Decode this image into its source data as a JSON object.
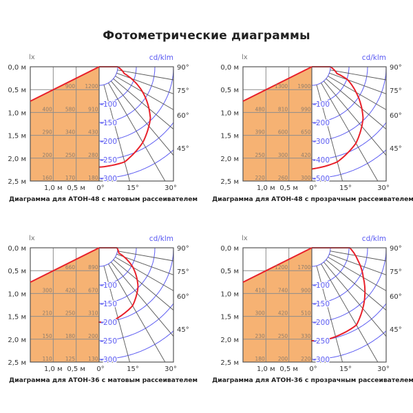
{
  "title": "Фотометрические диаграммы",
  "colors": {
    "fill": "#f6b273",
    "curve": "#e8202a",
    "rings": "#5b5bf2",
    "grid": "#8c8c8c",
    "frame": "#555555",
    "table_text": "#8f7d6b"
  },
  "chart_data": [
    {
      "type": "polar-photometric-with-illuminance-table",
      "caption": "Диаграмма для АТОН-48 с матовым рассеивателем",
      "unit_left": "lx",
      "unit_right": "cd/klm",
      "y_ticks": [
        "0,0 м",
        "0,5 м",
        "1,0 м",
        "1,5 м",
        "2,0 м",
        "2,5 м"
      ],
      "x_ticks_left": [
        "1,0 м",
        "0,5 м"
      ],
      "angle_ticks_bottom": [
        "0°",
        "15°",
        "30°"
      ],
      "angle_ticks_right": [
        "90°",
        "75°",
        "60°",
        "45°"
      ],
      "ring_labels": [
        "100",
        "150",
        "200",
        "250",
        "300"
      ],
      "illuminance_table": [
        [
          "",
          "900",
          "1200"
        ],
        [
          "400",
          "580",
          "910"
        ],
        [
          "290",
          "340",
          "430"
        ],
        [
          "200",
          "250",
          "280"
        ],
        [
          "160",
          "170",
          "180"
        ]
      ],
      "curve": [
        [
          0,
          270
        ],
        [
          15,
          265
        ],
        [
          30,
          235
        ],
        [
          45,
          195
        ],
        [
          60,
          135
        ],
        [
          75,
          70
        ],
        [
          90,
          50
        ]
      ]
    },
    {
      "type": "polar-photometric-with-illuminance-table",
      "caption": "Диаграмма для АТОН-48 с прозрачным рассеивателем",
      "unit_left": "lx",
      "unit_right": "cd/klm",
      "y_ticks": [
        "0,0 м",
        "0,5 м",
        "1,0 м",
        "1,5 м",
        "2,0 м",
        "2,5 м"
      ],
      "x_ticks_left": [
        "1,0 м",
        "0,5 м"
      ],
      "angle_ticks_bottom": [
        "0°",
        "15°",
        "30°"
      ],
      "angle_ticks_right": [
        "90°",
        "75°",
        "60°",
        "45°"
      ],
      "ring_labels": [
        "100",
        "200",
        "300",
        "400",
        "500"
      ],
      "illuminance_table": [
        [
          "",
          "1300",
          "1900"
        ],
        [
          "480",
          "810",
          "990"
        ],
        [
          "390",
          "600",
          "650"
        ],
        [
          "250",
          "300",
          "420"
        ],
        [
          "220",
          "260",
          "300"
        ]
      ],
      "curve": [
        [
          0,
          450
        ],
        [
          15,
          430
        ],
        [
          30,
          375
        ],
        [
          45,
          290
        ],
        [
          60,
          175
        ],
        [
          75,
          70
        ],
        [
          90,
          50
        ]
      ]
    },
    {
      "type": "polar-photometric-with-illuminance-table",
      "caption": "Диаграмма для АТОН-36 с матовым рассеивателем",
      "unit_left": "lx",
      "unit_right": "cd/klm",
      "y_ticks": [
        "0,0 м",
        "0,5 м",
        "1,0 м",
        "1,5 м",
        "2,0 м",
        "2,5 м"
      ],
      "x_ticks_left": [
        "1,0 м",
        "0,5 м"
      ],
      "angle_ticks_bottom": [
        "0°",
        "15°",
        "30°"
      ],
      "angle_ticks_right": [
        "90°",
        "75°",
        "60°",
        "45°"
      ],
      "ring_labels": [
        "100",
        "150",
        "200",
        "250",
        "300"
      ],
      "illuminance_table": [
        [
          "",
          "660",
          "890"
        ],
        [
          "300",
          "420",
          "670"
        ],
        [
          "210",
          "250",
          "310"
        ],
        [
          "150",
          "180",
          "200"
        ],
        [
          "110",
          "125",
          "130"
        ]
      ],
      "curve": [
        [
          13,
          197
        ],
        [
          30,
          180
        ],
        [
          45,
          148
        ],
        [
          60,
          105
        ],
        [
          75,
          55
        ],
        [
          90,
          48
        ]
      ],
      "axis_marker_cd": 200
    },
    {
      "type": "polar-photometric-with-illuminance-table",
      "caption": "Диаграмма для АТОН-36 с прозрачным рассеивателем",
      "unit_left": "lx",
      "unit_right": "cd/klm",
      "y_ticks": [
        "0,0 м",
        "0,5 м",
        "1,0 м",
        "1,5 м",
        "2,0 м",
        "2,5 м"
      ],
      "x_ticks_left": [
        "1,0 м",
        "0,5 м"
      ],
      "angle_ticks_bottom": [
        "0°",
        "15°",
        "30°"
      ],
      "angle_ticks_right": [
        "90°",
        "75°",
        "60°",
        "45°"
      ],
      "ring_labels": [
        "100",
        "150",
        "200",
        "250",
        "300"
      ],
      "illuminance_table": [
        [
          "",
          "1200",
          "1700"
        ],
        [
          "410",
          "740",
          "900"
        ],
        [
          "300",
          "420",
          "510"
        ],
        [
          "230",
          "250",
          "330"
        ],
        [
          "180",
          "200",
          "220"
        ]
      ],
      "curve": [
        [
          10,
          250
        ],
        [
          30,
          240
        ],
        [
          45,
          200
        ],
        [
          60,
          160
        ],
        [
          75,
          128
        ],
        [
          90,
          102
        ]
      ],
      "axis_marker_cd": 250
    }
  ]
}
